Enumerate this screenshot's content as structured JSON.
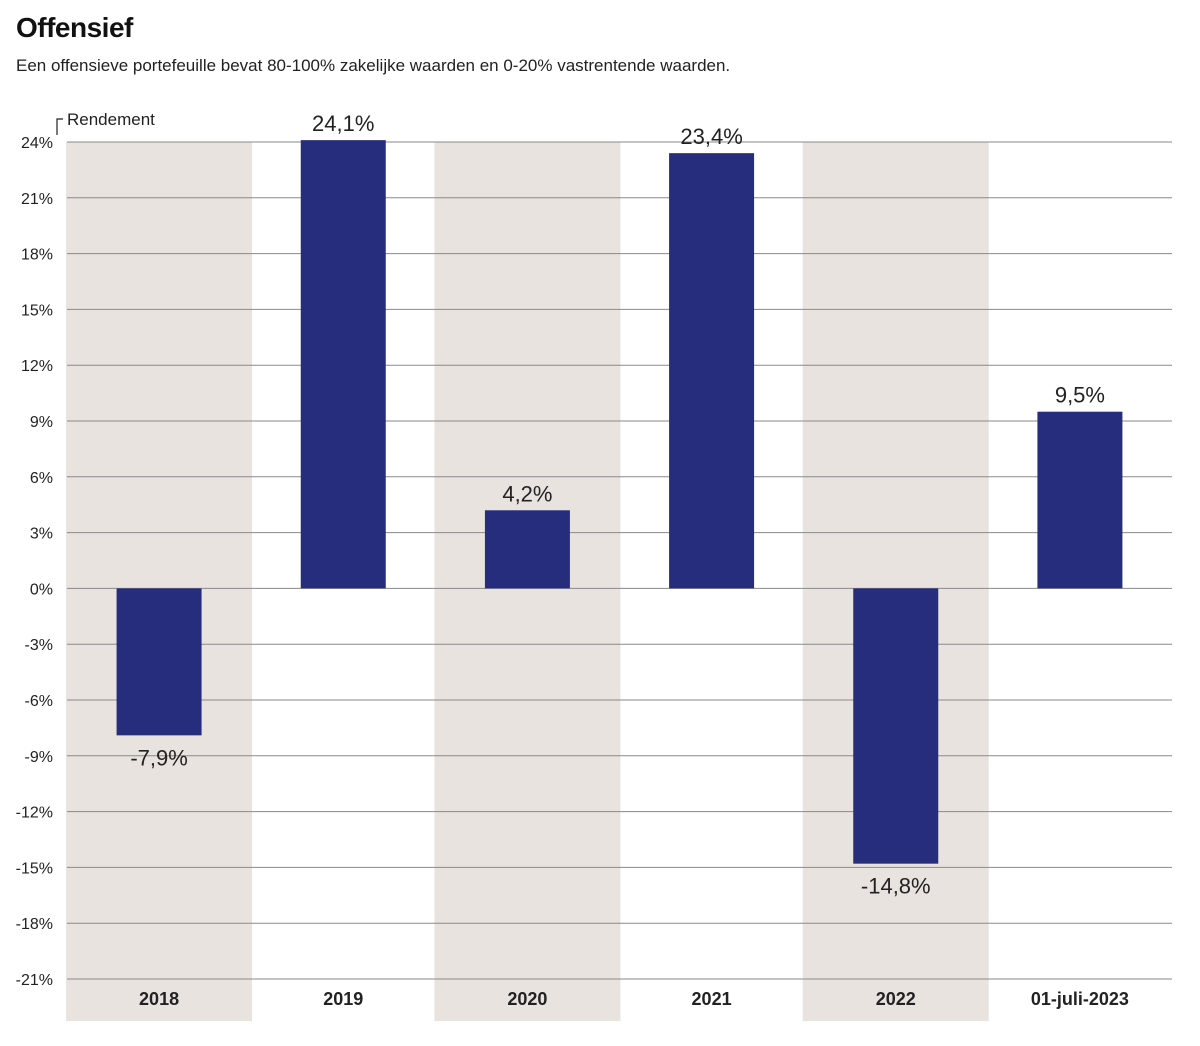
{
  "title": "Offensief",
  "subtitle": "Een offensieve portefeuille bevat 80-100% zakelijke waarden en 0-20% vastrentende waarden.",
  "colors": {
    "bar": "#262d7c",
    "band": "#e8e3df",
    "grid": "#8a8a8a",
    "text": "#222222"
  },
  "chart_data": {
    "type": "bar",
    "title": "Offensief",
    "ylabel": "Rendement",
    "xlabel": "",
    "categories": [
      "2018",
      "2019",
      "2020",
      "2021",
      "2022",
      "01-juli-2023"
    ],
    "values": [
      -7.9,
      24.1,
      4.2,
      23.4,
      -14.8,
      9.5
    ],
    "value_labels": [
      "-7,9%",
      "24,1%",
      "4,2%",
      "23,4%",
      "-14,8%",
      "9,5%"
    ],
    "ylim": [
      -21,
      24
    ],
    "yticks": [
      24,
      21,
      18,
      15,
      12,
      9,
      6,
      3,
      0,
      -3,
      -6,
      -9,
      -12,
      -15,
      -18,
      -21
    ],
    "ytick_labels": [
      "24%",
      "21%",
      "18%",
      "15%",
      "12%",
      "9%",
      "6%",
      "3%",
      "0%",
      "-3%",
      "-6%",
      "-9%",
      "-12%",
      "-15%",
      "-18%",
      "-21%"
    ],
    "shaded_categories": [
      0,
      2,
      4
    ],
    "grid": true
  }
}
